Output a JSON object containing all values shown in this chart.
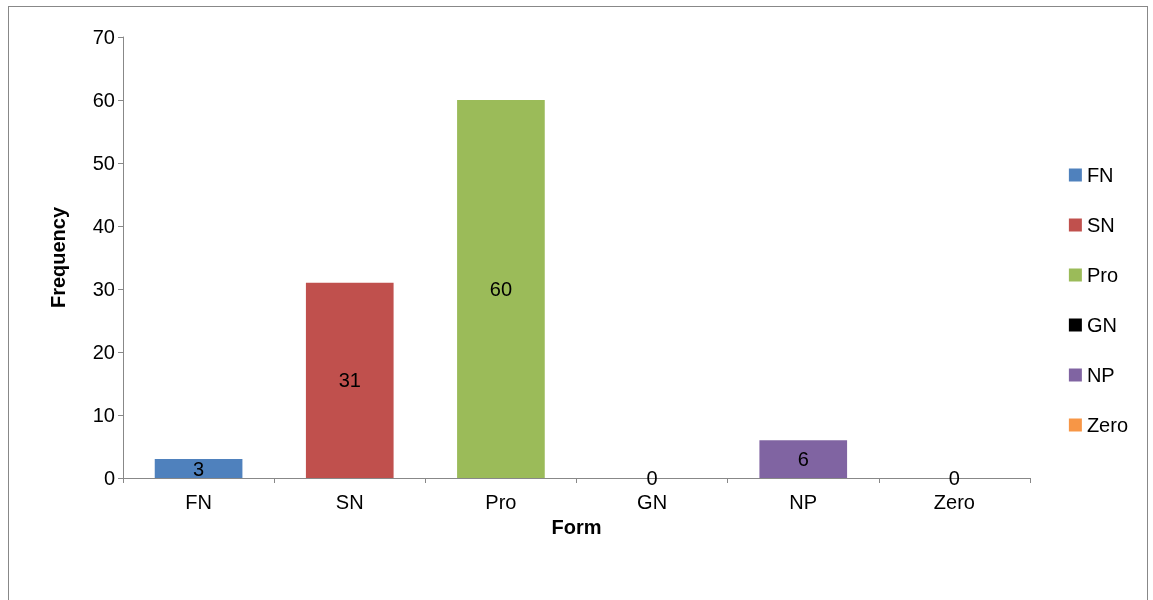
{
  "chart_data": {
    "type": "bar",
    "xlabel": "Form",
    "ylabel": "Frequency",
    "categories": [
      "FN",
      "SN",
      "Pro",
      "GN",
      "NP",
      "Zero"
    ],
    "series": [
      {
        "name": "FN",
        "color": "#4f81bd",
        "values": [
          3,
          null,
          null,
          null,
          null,
          null
        ]
      },
      {
        "name": "SN",
        "color": "#c0504d",
        "values": [
          null,
          31,
          null,
          null,
          null,
          null
        ]
      },
      {
        "name": "Pro",
        "color": "#9bbb59",
        "values": [
          null,
          null,
          60,
          null,
          null,
          null
        ]
      },
      {
        "name": "GN",
        "color": "#000000",
        "values": [
          null,
          null,
          null,
          0,
          null,
          null
        ]
      },
      {
        "name": "NP",
        "color": "#8064a2",
        "values": [
          null,
          null,
          null,
          null,
          6,
          null
        ]
      },
      {
        "name": "Zero",
        "color": "#f79646",
        "values": [
          null,
          null,
          null,
          null,
          null,
          0
        ]
      }
    ],
    "stacked": true,
    "ylim": [
      0,
      70
    ],
    "yticks": [
      0,
      10,
      20,
      30,
      40,
      50,
      60,
      70
    ],
    "grid": false,
    "legend": "right",
    "data_labels": true
  }
}
